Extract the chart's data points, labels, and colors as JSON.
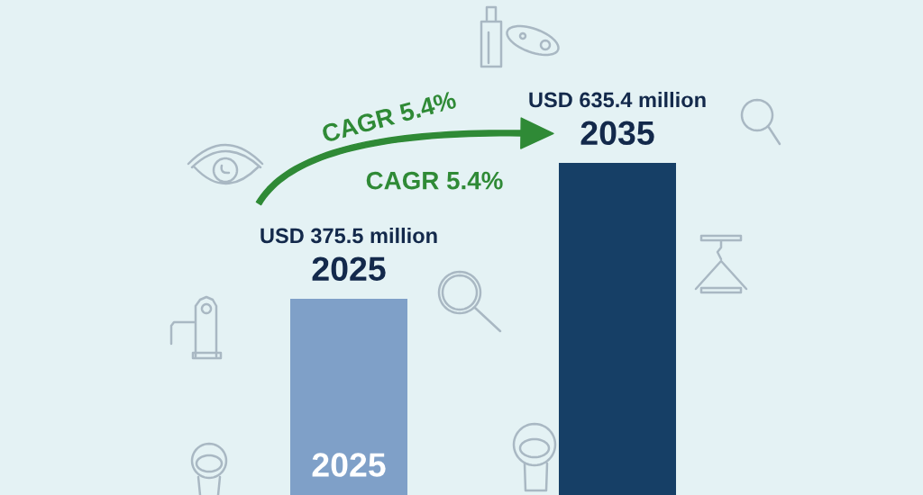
{
  "chart_data": {
    "type": "bar",
    "categories": [
      "2025",
      "2035"
    ],
    "values": [
      375500000,
      635400000
    ],
    "colors": [
      "#7fa0c8",
      "#163f66"
    ],
    "value_labels": [
      "USD 375.5 million",
      "USD 635.4 million"
    ],
    "annotations": [
      "CAGR 5.4%",
      "CAGR 5.4%",
      "2025"
    ],
    "tick_labels": false
  }
}
